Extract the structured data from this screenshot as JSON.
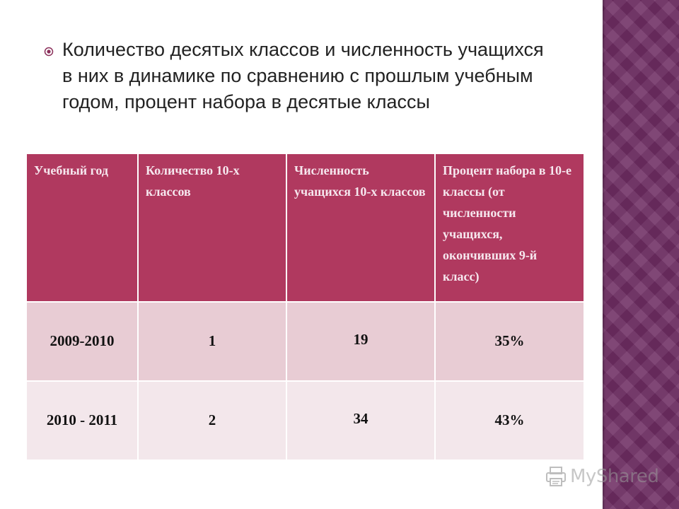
{
  "slide": {
    "heading": "Количество десятых классов и численность учащихся в них в динамике по сравнению с прошлым учебным годом, процент набора в десятые классы"
  },
  "table": {
    "headers": [
      "Учебный год",
      "Количество 10-х классов",
      "Численность учащихся 10-х классов",
      "Процент набора в 10-е классы (от численности учащихся, окончивших 9-й класс)"
    ],
    "rows": [
      [
        "2009-2010",
        "1",
        "19",
        "35%"
      ],
      [
        "2010 - 2011",
        "2",
        "34",
        "43%"
      ]
    ]
  },
  "watermark": {
    "text": "MyShared"
  },
  "colors": {
    "header_bg": "#b0395f",
    "row1_bg": "#e8ccd4",
    "row2_bg": "#f3e7eb",
    "side_band": "#6e2d63"
  }
}
